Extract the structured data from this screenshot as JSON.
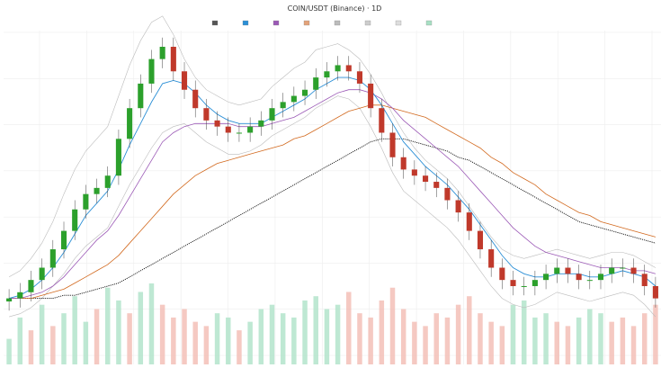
{
  "chart_data": {
    "type": "line",
    "title": "COIN/USDT (Binance) · 1D",
    "subtitle": "",
    "legend": [
      {
        "label": "",
        "color": "#555555",
        "kind": "candle"
      },
      {
        "label": "",
        "color": "#2b8fd6",
        "kind": "line"
      },
      {
        "label": "",
        "color": "#9b59b6",
        "kind": "line"
      },
      {
        "label": "",
        "color": "#e3a37a",
        "kind": "line"
      },
      {
        "label": "",
        "color": "#bbbbbb",
        "kind": "line"
      },
      {
        "label": "",
        "color": "#cccccc",
        "kind": "line"
      },
      {
        "label": "",
        "color": "#dddddd",
        "kind": "line"
      },
      {
        "label": "",
        "color": "#a8e0c4",
        "kind": "area"
      }
    ],
    "x_labels": [
      "",
      "",
      "",
      "",
      "",
      "",
      "",
      "",
      "",
      "",
      "",
      "",
      "",
      ""
    ],
    "y_labels": [
      "",
      "",
      "",
      "",
      "",
      "",
      "",
      ""
    ],
    "colors": {
      "up": "#2ca02c",
      "down": "#c0392b",
      "wick": "#444444",
      "ema_fast": "#2b8fd6",
      "ema_mid": "#9b59b6",
      "ema_slow": "#d2691e",
      "ema_long": "#111111",
      "bands": "#bbbbbb",
      "vol_up": "#a8e0c4",
      "vol_down": "#f1b7ad",
      "grid": "#ededed"
    },
    "y_range": [
      0,
      100
    ],
    "close_series": [
      18,
      20,
      24,
      28,
      34,
      40,
      47,
      52,
      54,
      58,
      70,
      80,
      88,
      96,
      100,
      92,
      86,
      80,
      76,
      74,
      72,
      72,
      74,
      76,
      80,
      82,
      84,
      86,
      90,
      92,
      94,
      92,
      88,
      80,
      72,
      64,
      60,
      58,
      56,
      54,
      50,
      46,
      40,
      34,
      28,
      24,
      22,
      22,
      24,
      26,
      28,
      26,
      24,
      24,
      26,
      28,
      28,
      26,
      22,
      18
    ],
    "ema_fast": [
      18,
      19,
      21,
      24,
      28,
      33,
      39,
      45,
      49,
      53,
      60,
      68,
      75,
      82,
      88,
      89,
      88,
      85,
      81,
      78,
      76,
      75,
      75,
      75,
      77,
      79,
      81,
      83,
      86,
      88,
      90,
      90,
      89,
      86,
      81,
      75,
      69,
      65,
      61,
      58,
      55,
      51,
      47,
      42,
      37,
      32,
      28,
      26,
      25,
      25,
      26,
      26,
      26,
      25,
      25,
      26,
      27,
      26,
      25,
      22
    ],
    "ema_mid": [
      18,
      18,
      19,
      20,
      22,
      25,
      29,
      33,
      37,
      40,
      45,
      51,
      57,
      63,
      69,
      72,
      74,
      75,
      75,
      75,
      75,
      74,
      74,
      74,
      75,
      76,
      77,
      79,
      81,
      83,
      85,
      86,
      86,
      85,
      83,
      80,
      76,
      73,
      70,
      67,
      64,
      61,
      57,
      53,
      49,
      45,
      41,
      38,
      35,
      33,
      32,
      31,
      30,
      29,
      28,
      28,
      28,
      27,
      27,
      26
    ],
    "ema_slow": [
      18,
      18,
      18,
      19,
      20,
      21,
      23,
      25,
      27,
      29,
      32,
      36,
      40,
      44,
      48,
      52,
      55,
      58,
      60,
      62,
      63,
      64,
      65,
      66,
      67,
      68,
      70,
      71,
      73,
      75,
      77,
      79,
      80,
      81,
      81,
      80,
      79,
      78,
      77,
      75,
      73,
      71,
      69,
      67,
      64,
      62,
      59,
      57,
      55,
      52,
      50,
      48,
      46,
      45,
      43,
      42,
      41,
      40,
      39,
      38
    ],
    "ema_long": [
      18,
      18,
      18,
      18,
      18,
      19,
      19,
      20,
      21,
      22,
      23,
      25,
      27,
      29,
      31,
      33,
      35,
      37,
      39,
      41,
      43,
      45,
      47,
      49,
      51,
      53,
      55,
      57,
      59,
      61,
      63,
      65,
      67,
      69,
      70,
      70,
      70,
      69,
      68,
      67,
      66,
      64,
      63,
      61,
      59,
      57,
      55,
      53,
      51,
      49,
      47,
      45,
      43,
      42,
      41,
      40,
      39,
      38,
      37,
      36
    ],
    "volume": [
      30,
      55,
      40,
      70,
      45,
      60,
      80,
      50,
      65,
      90,
      75,
      60,
      85,
      95,
      70,
      55,
      65,
      50,
      45,
      60,
      55,
      40,
      50,
      65,
      70,
      60,
      55,
      75,
      80,
      65,
      70,
      85,
      60,
      55,
      75,
      90,
      65,
      50,
      45,
      60,
      55,
      70,
      80,
      60,
      50,
      45,
      70,
      75,
      55,
      60,
      50,
      45,
      55,
      65,
      60,
      50,
      55,
      45,
      60,
      70
    ],
    "volume_up": [
      1,
      1,
      0,
      1,
      0,
      1,
      1,
      1,
      0,
      1,
      1,
      0,
      1,
      1,
      0,
      0,
      0,
      0,
      0,
      1,
      1,
      0,
      1,
      1,
      1,
      1,
      1,
      1,
      1,
      1,
      1,
      0,
      0,
      0,
      0,
      0,
      0,
      0,
      0,
      0,
      0,
      0,
      0,
      0,
      0,
      0,
      1,
      1,
      1,
      1,
      0,
      0,
      1,
      1,
      1,
      0,
      0,
      0,
      0,
      0
    ],
    "band_upper": [
      25,
      27,
      31,
      36,
      43,
      52,
      60,
      66,
      70,
      74,
      84,
      94,
      102,
      108,
      110,
      104,
      96,
      90,
      86,
      84,
      82,
      81,
      82,
      83,
      87,
      90,
      93,
      95,
      99,
      100,
      101,
      99,
      96,
      91,
      85,
      78,
      72,
      67,
      63,
      60,
      57,
      53,
      48,
      43,
      38,
      34,
      32,
      31,
      32,
      33,
      34,
      33,
      32,
      31,
      32,
      33,
      33,
      32,
      30,
      28
    ],
    "band_lower": [
      12,
      13,
      15,
      18,
      22,
      26,
      31,
      35,
      38,
      41,
      48,
      55,
      61,
      67,
      72,
      74,
      75,
      72,
      69,
      67,
      65,
      65,
      66,
      68,
      71,
      73,
      75,
      77,
      80,
      82,
      84,
      83,
      80,
      74,
      67,
      59,
      53,
      50,
      47,
      44,
      41,
      37,
      32,
      27,
      22,
      18,
      16,
      15,
      16,
      18,
      20,
      19,
      18,
      17,
      18,
      19,
      20,
      19,
      16,
      12
    ]
  }
}
